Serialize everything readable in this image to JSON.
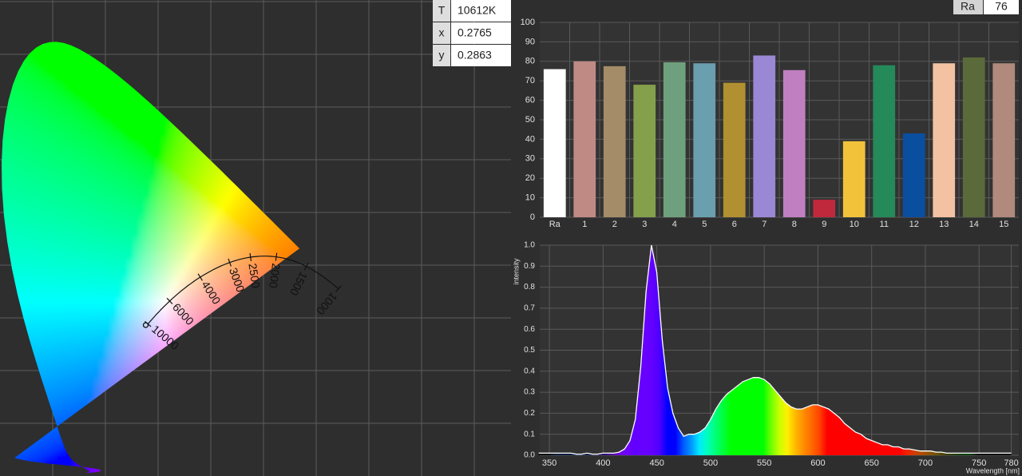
{
  "chart_data": [
    {
      "type": "cie",
      "readout": {
        "labels": [
          "T",
          "x",
          "y"
        ],
        "cct": "10612K"
      },
      "point": {
        "x": 0.2765,
        "y": 0.2863
      },
      "cct_ticks": [
        10000,
        6000,
        4000,
        3000,
        2500,
        2000,
        1500,
        1000
      ]
    },
    {
      "type": "bar",
      "categories": [
        "Ra",
        "1",
        "2",
        "3",
        "4",
        "5",
        "6",
        "7",
        "8",
        "9",
        "10",
        "11",
        "12",
        "13",
        "14",
        "15"
      ],
      "values": [
        76,
        80,
        77.5,
        68,
        79.5,
        79,
        69,
        83,
        75.5,
        9,
        39,
        78,
        43,
        79,
        82,
        79
      ],
      "colors": [
        "#ffffff",
        "#bf8a84",
        "#a48c68",
        "#84a04a",
        "#6fa07d",
        "#6a9fb0",
        "#b09030",
        "#9a88d4",
        "#c07fc0",
        "#c0283c",
        "#f2c23a",
        "#248a5a",
        "#0a4ea0",
        "#f2c2a2",
        "#5a6a3a",
        "#b08a7c"
      ],
      "ylim": [
        0,
        100
      ],
      "yticks": [
        0,
        10,
        20,
        30,
        40,
        50,
        60,
        70,
        80,
        90,
        100
      ],
      "grid": true
    },
    {
      "type": "area",
      "y_label": "intensity",
      "x_label": "Wavelength [nm]",
      "x": [
        340,
        345,
        350,
        355,
        360,
        365,
        370,
        375,
        380,
        385,
        390,
        395,
        400,
        405,
        410,
        415,
        420,
        425,
        430,
        435,
        440,
        445,
        450,
        455,
        460,
        465,
        470,
        475,
        480,
        485,
        490,
        495,
        500,
        505,
        510,
        515,
        520,
        525,
        530,
        535,
        540,
        545,
        550,
        555,
        560,
        565,
        570,
        575,
        580,
        585,
        590,
        595,
        600,
        605,
        610,
        615,
        620,
        625,
        630,
        635,
        640,
        645,
        650,
        655,
        660,
        665,
        670,
        675,
        680,
        685,
        690,
        695,
        700,
        705,
        710,
        715,
        720,
        725,
        730,
        735,
        740,
        745,
        750,
        755,
        760,
        765,
        770,
        775,
        780
      ],
      "values": [
        0.01,
        0.01,
        0.01,
        0.01,
        0.01,
        0.01,
        0.01,
        0.005,
        0.005,
        0.01,
        0.005,
        0.005,
        0.01,
        0.01,
        0.01,
        0.015,
        0.03,
        0.07,
        0.17,
        0.42,
        0.78,
        1.0,
        0.87,
        0.55,
        0.32,
        0.2,
        0.13,
        0.09,
        0.1,
        0.1,
        0.11,
        0.13,
        0.17,
        0.22,
        0.26,
        0.29,
        0.31,
        0.33,
        0.35,
        0.36,
        0.37,
        0.37,
        0.36,
        0.34,
        0.31,
        0.28,
        0.25,
        0.23,
        0.22,
        0.22,
        0.23,
        0.24,
        0.24,
        0.23,
        0.22,
        0.2,
        0.18,
        0.15,
        0.13,
        0.11,
        0.1,
        0.08,
        0.07,
        0.06,
        0.05,
        0.05,
        0.04,
        0.04,
        0.03,
        0.03,
        0.025,
        0.02,
        0.02,
        0.02,
        0.015,
        0.015,
        0.01,
        0.01,
        0.01,
        0.01,
        0.01,
        0.01,
        0.01,
        0.01,
        0.01,
        0.01,
        0.01,
        0.01,
        0.01
      ],
      "xlim": [
        341,
        787
      ],
      "xticks": [
        350,
        400,
        450,
        500,
        550,
        600,
        650,
        700,
        750,
        780
      ],
      "ylim": [
        0,
        1
      ],
      "yticks": [
        {
          "value": 0,
          "label": "0.0"
        },
        {
          "value": 0.1,
          "label": "0.1"
        },
        {
          "value": 0.2,
          "label": "0.2"
        },
        {
          "value": 0.3,
          "label": "0.3"
        },
        {
          "value": 0.4,
          "label": "0.4"
        },
        {
          "value": 0.5,
          "label": "0.5"
        },
        {
          "value": 0.6,
          "label": "0.6"
        },
        {
          "value": 0.7,
          "label": "0.7"
        },
        {
          "value": 0.8,
          "label": "0.8"
        },
        {
          "value": 0.9,
          "label": "0.9"
        },
        {
          "value": 1,
          "label": "1.0"
        }
      ],
      "grid": true
    }
  ]
}
